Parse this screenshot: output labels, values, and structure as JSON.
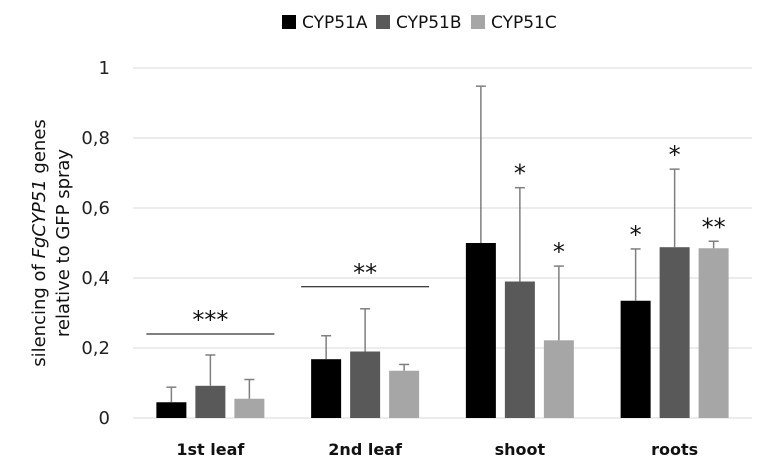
{
  "chart_data": {
    "type": "bar",
    "categories": [
      "1st leaf",
      "2nd leaf",
      "shoot",
      "roots"
    ],
    "series": [
      {
        "name": "CYP51A",
        "color": "#000000",
        "values": [
          0.045,
          0.168,
          0.5,
          0.335
        ],
        "errors": [
          0.043,
          0.067,
          0.448,
          0.148
        ]
      },
      {
        "name": "CYP51B",
        "color": "#595959",
        "values": [
          0.092,
          0.19,
          0.39,
          0.488
        ],
        "errors": [
          0.088,
          0.122,
          0.268,
          0.223
        ]
      },
      {
        "name": "CYP51C",
        "color": "#a6a6a6",
        "values": [
          0.055,
          0.135,
          0.222,
          0.485
        ],
        "errors": [
          0.055,
          0.018,
          0.212,
          0.02
        ]
      }
    ],
    "ylabel_lines": [
      {
        "before": "silencing of ",
        "italic": "FgCYP51",
        "after": " genes"
      },
      {
        "before": "relative to GFP spray",
        "italic": "",
        "after": ""
      }
    ],
    "ylim": [
      0,
      1
    ],
    "yticks": [
      "0",
      "0,2",
      "0,4",
      "0,6",
      "0,8",
      "1"
    ],
    "ytick_values": [
      0,
      0.2,
      0.4,
      0.6,
      0.8,
      1
    ],
    "grid": true,
    "legend_position": "top-center",
    "group_annotations": [
      {
        "category": 0,
        "label": "***",
        "level": 0.24
      },
      {
        "category": 1,
        "label": "**",
        "level": 0.375
      }
    ],
    "bar_annotations": [
      {
        "category": 2,
        "series": 1,
        "label": "*"
      },
      {
        "category": 2,
        "series": 2,
        "label": "*"
      },
      {
        "category": 3,
        "series": 0,
        "label": "*"
      },
      {
        "category": 3,
        "series": 1,
        "label": "*"
      },
      {
        "category": 3,
        "series": 2,
        "label": "**"
      }
    ]
  }
}
